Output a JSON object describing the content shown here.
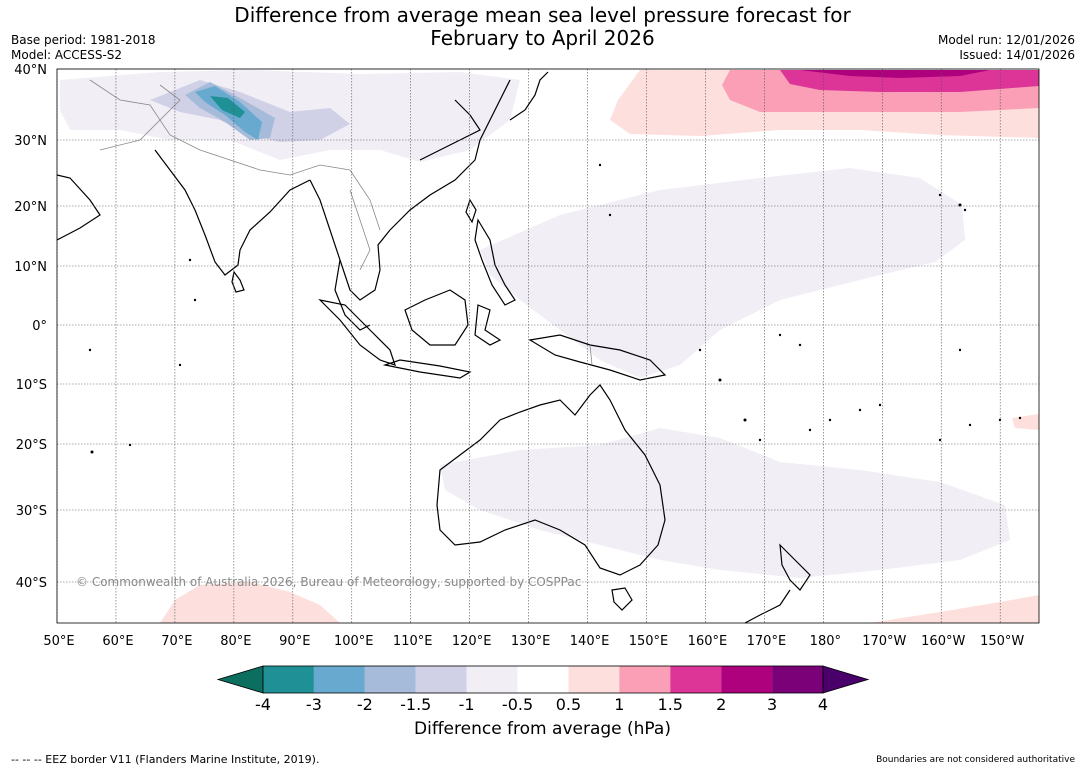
{
  "title_line1": "Difference from average mean sea level pressure forecast for",
  "title_line2": "February to April 2026",
  "base_period": "Base period: 1981-2018",
  "model": "Model: ACCESS-S2",
  "model_run": "Model run: 12/01/2026",
  "issued": "Issued: 14/01/2026",
  "copyright": "© Commonwealth of Australia 2026, Bureau of Meteorology, supported by COSPPac",
  "colorbar": {
    "label": "Difference from average (hPa)",
    "ticks": [
      "-4",
      "-3",
      "-2",
      "-1.5",
      "-1",
      "-0.5",
      "0.5",
      "1",
      "1.5",
      "2",
      "3",
      "4"
    ],
    "colors": [
      "#0c6e5e",
      "#1f9096",
      "#67a9cf",
      "#a6bbd9",
      "#d0d1e6",
      "#f1eef6",
      "#ffffff",
      "#fde0dd",
      "#fa9fb5",
      "#dd3497",
      "#ae017e",
      "#7a0177",
      "#49006a"
    ]
  },
  "latitude_labels": [
    "40°N",
    "30°N",
    "20°N",
    "10°N",
    "0°",
    "10°S",
    "20°S",
    "30°S",
    "40°S"
  ],
  "longitude_labels": [
    "50°E",
    "60°E",
    "70°E",
    "80°E",
    "90°E",
    "100°E",
    "110°E",
    "120°E",
    "130°E",
    "140°E",
    "150°E",
    "160°E",
    "170°E",
    "180°",
    "170°W",
    "160°W",
    "150°W"
  ],
  "footer_left": "--  --  -- EEZ border V11 (Flanders Marine Institute, 2019).",
  "footer_right": "Boundaries are not considered authoritative"
}
